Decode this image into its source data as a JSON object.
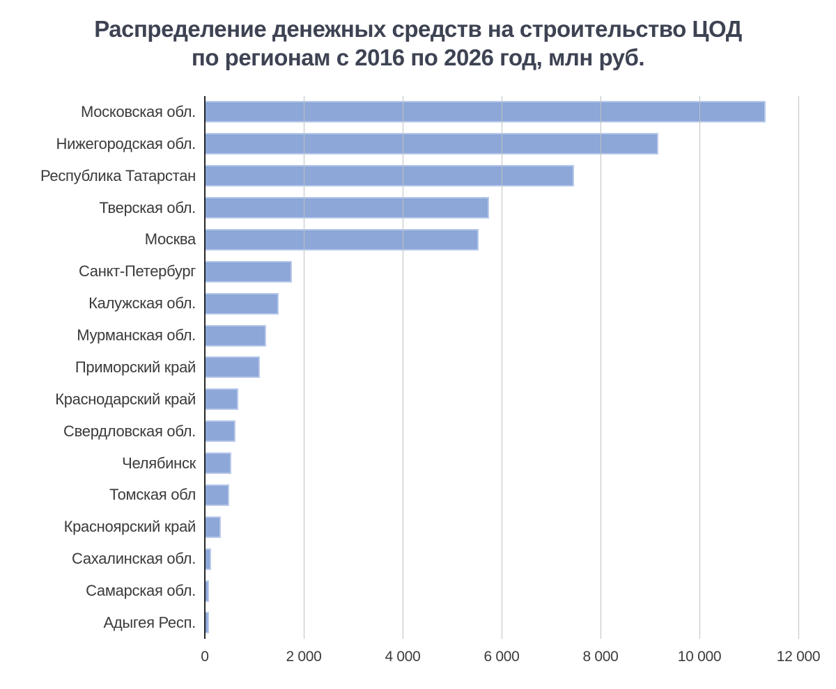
{
  "title": {
    "line1": "Распределение денежных средств на строительство ЦОД",
    "line2": "по регионам с 2016 по 2026 год, млн руб."
  },
  "chart_data": {
    "type": "bar",
    "orientation": "horizontal",
    "title": "Распределение денежных средств на строительство ЦОД по регионам с 2016 по 2026 год, млн руб.",
    "xlabel": "",
    "ylabel": "",
    "units": "млн руб.",
    "categories": [
      "Московская обл.",
      "Нижегородская обл.",
      "Республика Татарстан",
      "Тверская обл.",
      "Москва",
      "Санкт-Петербург",
      "Калужская обл.",
      "Мурманская обл.",
      "Приморский край",
      "Краснодарский край",
      "Свердловская обл.",
      "Челябинск",
      "Томская обл",
      "Красноярский край",
      "Сахалинская обл.",
      "Самарская обл.",
      "Адыгея Респ."
    ],
    "values": [
      11340,
      9170,
      7460,
      5750,
      5530,
      1760,
      1490,
      1240,
      1110,
      670,
      620,
      530,
      500,
      330,
      120,
      90,
      80
    ],
    "xlim": [
      0,
      12000
    ],
    "x_ticks": [
      0,
      2000,
      4000,
      6000,
      8000,
      10000,
      12000
    ],
    "x_tick_labels": [
      "0",
      "2 000",
      "4 000",
      "6 000",
      "8 000",
      "10 000",
      "12 000"
    ],
    "grid": "vertical",
    "legend": "none",
    "colors": {
      "bar_fill": "#8ca7d8",
      "bar_border": "#b9c9ea",
      "gridline": "#c1c1c1",
      "axis_line": "#262626",
      "title_text": "#3e4353",
      "label_text": "#3a3a3a",
      "tick_text": "#3c3c3c",
      "background": "#ffffff"
    }
  }
}
